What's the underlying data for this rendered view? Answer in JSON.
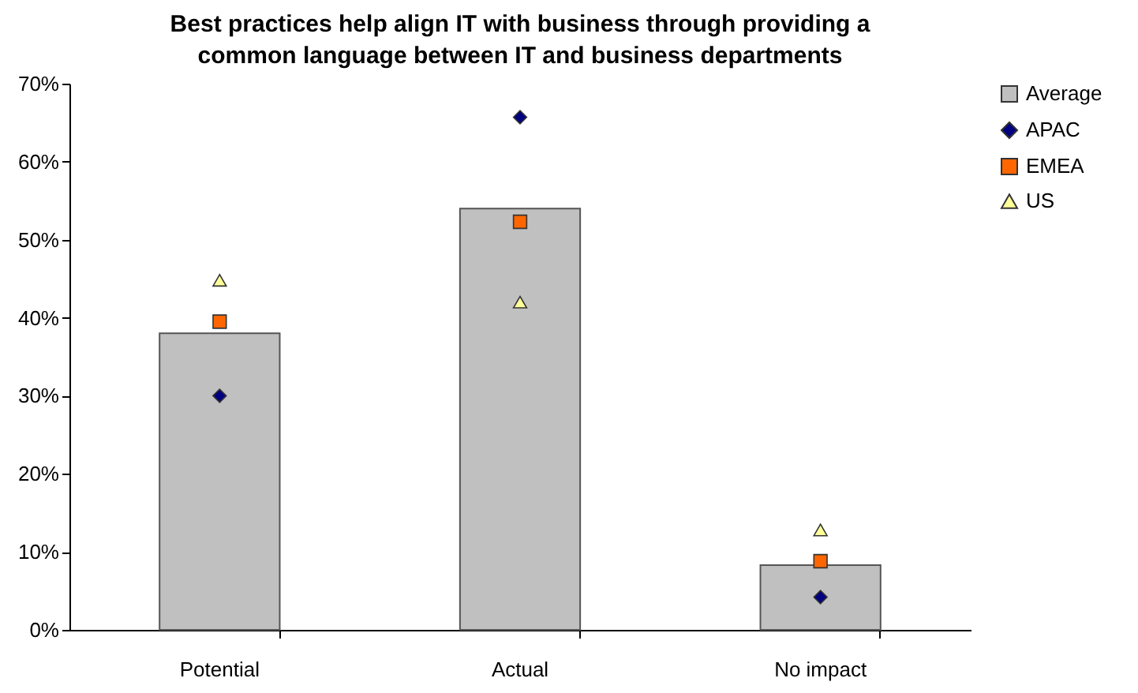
{
  "chart_data": {
    "type": "bar",
    "title": "Best practices help align IT with business through providing a common language between IT and business departments",
    "categories": [
      "Potential",
      "Actual",
      "No impact"
    ],
    "series": [
      {
        "name": "Average",
        "color": "#c0c0c0",
        "values": [
          38,
          54,
          8.3
        ]
      },
      {
        "name": "APAC",
        "type": "scatter",
        "marker": "diamond",
        "color": "#000080",
        "values": [
          30,
          65.7,
          4.2
        ]
      },
      {
        "name": "EMEA",
        "type": "scatter",
        "marker": "square",
        "color": "#ff6600",
        "values": [
          39.5,
          52.3,
          8.8
        ]
      },
      {
        "name": "US",
        "type": "scatter",
        "marker": "triangle",
        "color": "#ffff99",
        "values": [
          44.8,
          42,
          12.8
        ]
      }
    ],
    "ylim": [
      0,
      70
    ],
    "yticks": [
      {
        "value": 0,
        "label": "0%"
      },
      {
        "value": 10,
        "label": "10%"
      },
      {
        "value": 20,
        "label": "20%"
      },
      {
        "value": 30,
        "label": "30%"
      },
      {
        "value": 40,
        "label": "40%"
      },
      {
        "value": 50,
        "label": "50%"
      },
      {
        "value": 60,
        "label": "60%"
      },
      {
        "value": 70,
        "label": "70%"
      }
    ],
    "grid": false,
    "legend": "top right"
  }
}
